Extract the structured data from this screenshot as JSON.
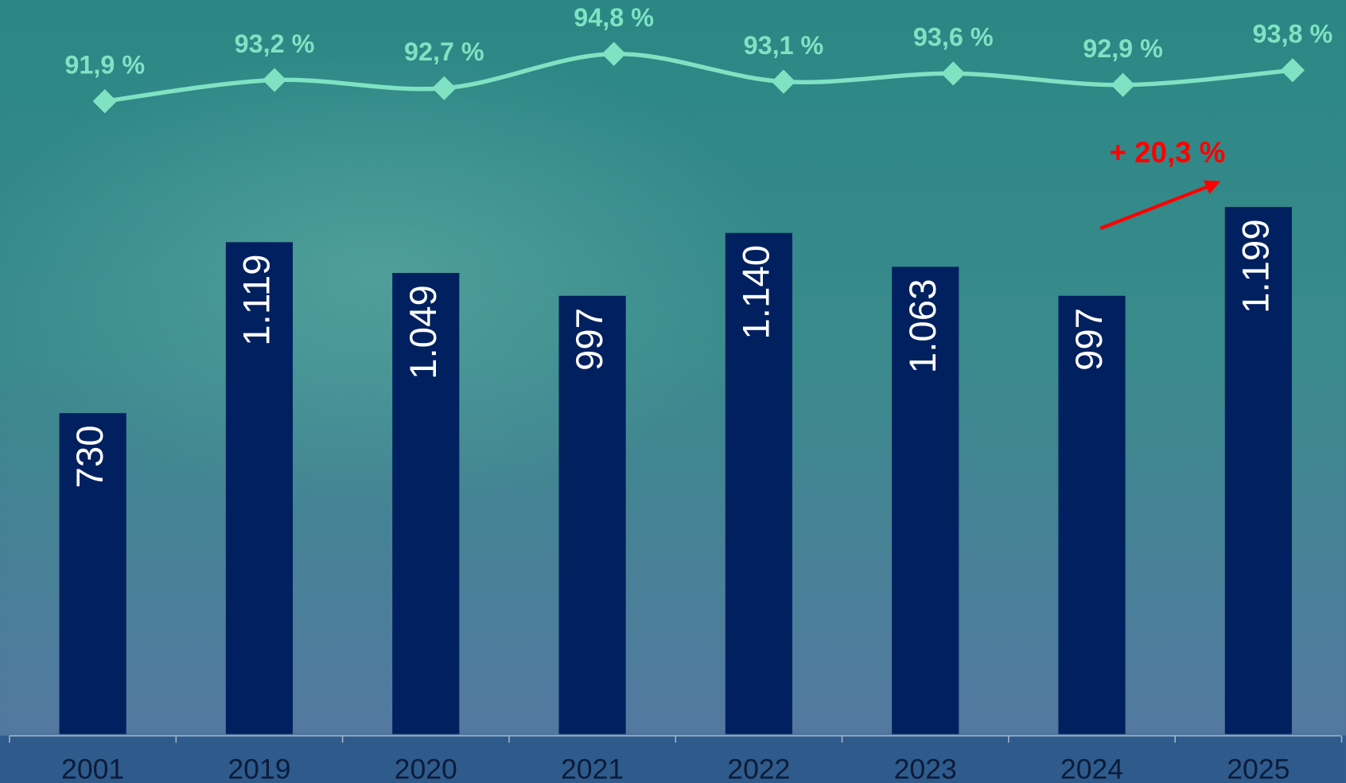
{
  "chart_data": {
    "type": "bar",
    "categories": [
      "2001",
      "2019",
      "2020",
      "2021",
      "2022",
      "2023",
      "2024",
      "2025"
    ],
    "series": [
      {
        "type": "bar",
        "color": "#00205f",
        "values": [
          730,
          1119,
          1049,
          997,
          1140,
          1063,
          997,
          1199
        ],
        "value_labels": [
          "730",
          "1.119",
          "1.049",
          "997",
          "1.140",
          "1.063",
          "997",
          "1.199"
        ]
      },
      {
        "type": "line",
        "color": "#7fe3c3",
        "values": [
          91.9,
          93.2,
          92.7,
          94.8,
          93.1,
          93.6,
          92.9,
          93.8
        ],
        "value_labels": [
          "91,9 %",
          "93,2 %",
          "92,7 %",
          "94,8 %",
          "93,1 %",
          "93,6 %",
          "92,9 %",
          "93,8 %"
        ]
      }
    ],
    "annotation": "+ 20,3 %",
    "annotation_color": "#ff0000"
  }
}
